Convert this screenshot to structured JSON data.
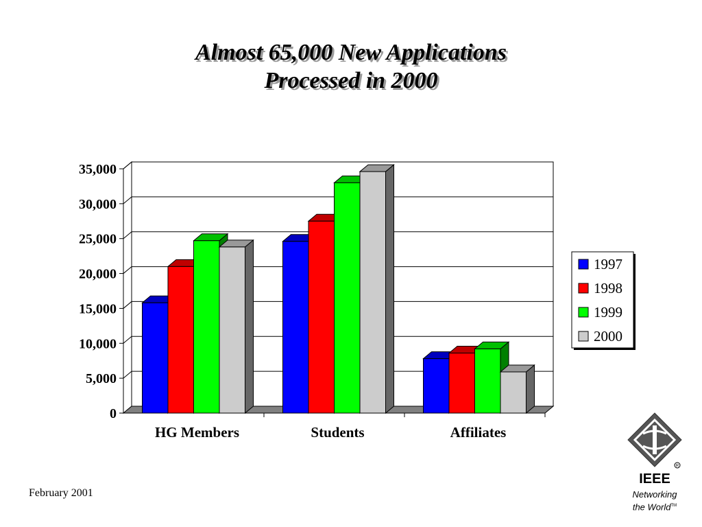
{
  "slide": {
    "title_line1": "Almost 65,000 New Applications",
    "title_line2": "Processed in 2000",
    "footer_date": "February 2001"
  },
  "logo": {
    "name": "IEEE",
    "tagline_line1": "Networking",
    "tagline_line2": "the World",
    "trademark": "TM",
    "registered": "R"
  },
  "chart_data": {
    "type": "bar",
    "categories": [
      "HG Members",
      "Students",
      "Affiliates"
    ],
    "series": [
      {
        "name": "1997",
        "values": [
          15800,
          24600,
          7800
        ],
        "color": "#0000ff"
      },
      {
        "name": "1998",
        "values": [
          21000,
          27500,
          8600
        ],
        "color": "#ff0000"
      },
      {
        "name": "1999",
        "values": [
          24700,
          33000,
          9200
        ],
        "color": "#00ff00"
      },
      {
        "name": "2000",
        "values": [
          23800,
          34600,
          5900
        ],
        "color": "#cccccc"
      }
    ],
    "ylim": [
      0,
      35000
    ],
    "yticks": [
      "0",
      "5,000",
      "10,000",
      "15,000",
      "20,000",
      "25,000",
      "30,000",
      "35,000"
    ],
    "grid": true,
    "legend": "right"
  }
}
